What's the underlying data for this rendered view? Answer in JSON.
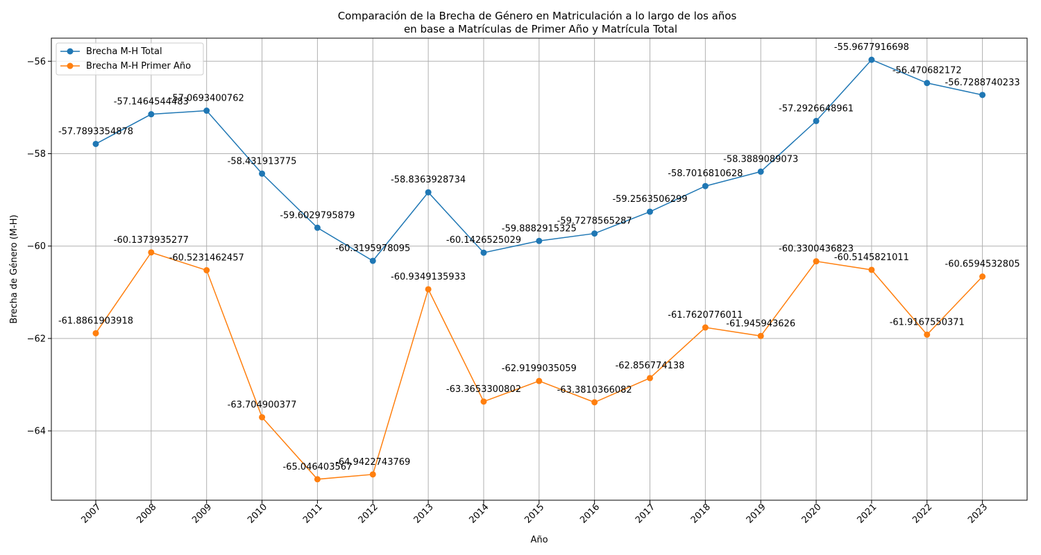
{
  "chart_data": {
    "type": "line",
    "title": [
      "Comparación de la Brecha de Género en Matriculación a lo largo de los años",
      "en base a Matrículas de Primer Año y Matrícula Total"
    ],
    "xlabel": "Año",
    "ylabel": "Brecha de Género (M-H)",
    "ylim": [
      -65.5,
      -55.5
    ],
    "yticks": [
      -64,
      -62,
      -60,
      -58,
      -56
    ],
    "ytick_labels": [
      "−64",
      "−62",
      "−60",
      "−58",
      "−56"
    ],
    "grid": true,
    "legend_position": "top-left",
    "categories": [
      "2007",
      "2008",
      "2009",
      "2010",
      "2011",
      "2012",
      "2013",
      "2014",
      "2015",
      "2016",
      "2017",
      "2018",
      "2019",
      "2020",
      "2021",
      "2022",
      "2023"
    ],
    "series": [
      {
        "name": "Brecha M-H Total",
        "color": "#1f77b4",
        "values": [
          -57.7893354878,
          -57.1464544483,
          -57.0693400762,
          -58.431913775,
          -59.6029795879,
          -60.3195978095,
          -58.8363928734,
          -60.1426525029,
          -59.8882915325,
          -59.7278565287,
          -59.2563506299,
          -58.7016810628,
          -58.3889089073,
          -57.2926648961,
          -55.9677916698,
          -56.470682172,
          -56.7288740233
        ],
        "labels": [
          "-57.7893354878",
          "-57.1464544483",
          "-57.0693400762",
          "-58.431913775",
          "-59.6029795879",
          "-60.3195978095",
          "-58.8363928734",
          "-60.1426525029",
          "-59.8882915325",
          "-59.7278565287",
          "-59.2563506299",
          "-58.7016810628",
          "-58.3889089073",
          "-57.2926648961",
          "-55.9677916698",
          "-56.470682172",
          "-56.7288740233"
        ]
      },
      {
        "name": "Brecha M-H Primer Año",
        "color": "#ff7f0e",
        "values": [
          -61.8861903918,
          -60.1373935277,
          -60.5231462457,
          -63.704900377,
          -65.046403567,
          -64.9422743769,
          -60.9349135933,
          -63.3653300802,
          -62.9199035059,
          -63.3810366082,
          -62.856774138,
          -61.7620776011,
          -61.945943626,
          -60.3300436823,
          -60.5145821011,
          -61.9167550371,
          -60.6594532805
        ],
        "labels": [
          "-61.8861903918",
          "-60.1373935277",
          "-60.5231462457",
          "-63.704900377",
          "-65.046403567",
          "-64.9422743769",
          "-60.9349135933",
          "-63.3653300802",
          "-62.9199035059",
          "-63.3810366082",
          "-62.856774138",
          "-61.7620776011",
          "-61.945943626",
          "-60.3300436823",
          "-60.5145821011",
          "-61.9167550371",
          "-60.6594532805"
        ]
      }
    ]
  }
}
